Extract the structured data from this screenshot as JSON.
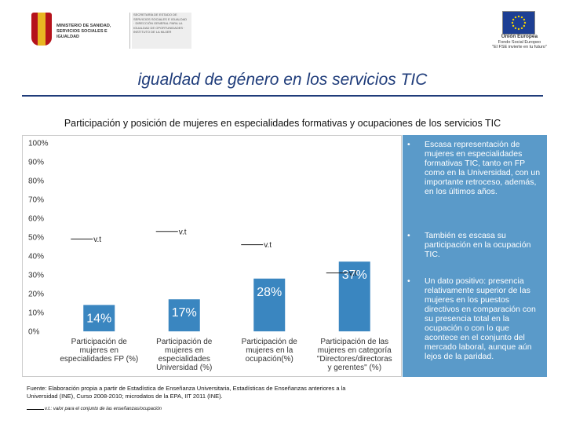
{
  "header": {
    "ministry": "MINISTERIO DE SANIDAD, SERVICIOS SOCIALES E IGUALDAD",
    "sub_org": "SECRETARÍA DE ESTADO DE SERVICIOS SOCIALES E IGUALDAD · DIRECCIÓN GENERAL PARA LA IGUALDAD DE OPORTUNIDADES · INSTITUTO DE LA MUJER",
    "eu_label": "Unión Europea",
    "eu_fund": "Fondo Social Europeo",
    "eu_motto": "\"El FSE invierte en tu futuro\""
  },
  "page_title": "igualdad de género en los servicios TIC",
  "subtitle": "Participación y posición de mujeres en especialidades formativas y ocupaciones de los servicios TIC",
  "chart_data": {
    "type": "bar",
    "title": "Participación y posición de mujeres en especialidades formativas y ocupaciones de los servicios TIC",
    "categories": [
      "Participación de mujeres en especialidades FP (%)",
      "Participación de mujeres en especialidades Universidad (%)",
      "Participación de mujeres en la ocupación(%)",
      "Participación de mujeres en categoría \"Directores/directoras y gerentes\" (%)"
    ],
    "category_lines": [
      [
        "Participación de",
        "mujeres en",
        "especialidades FP (%)"
      ],
      [
        "Participación de",
        "mujeres en",
        "especialidades",
        "Universidad (%)"
      ],
      [
        "Participación de",
        "mujeres en la",
        "ocupación(%)"
      ],
      [
        "Participación de las",
        "mujeres en categoría",
        "\"Directores/directoras",
        "y gerentes\" (%)"
      ]
    ],
    "values": [
      14,
      17,
      28,
      37
    ],
    "value_labels": [
      "14%",
      "17%",
      "28%",
      "37%"
    ],
    "reference_values": [
      49,
      53,
      46,
      31
    ],
    "reference_label": "v.t",
    "ylim": [
      0,
      100
    ],
    "yticks": [
      "0%",
      "10%",
      "20%",
      "30%",
      "40%",
      "50%",
      "60%",
      "70%",
      "80%",
      "90%",
      "100%"
    ],
    "xlabel": "",
    "ylabel": "",
    "bar_color": "#3a86c0",
    "grid": false
  },
  "bullets": [
    {
      "marker": "•",
      "text": "Escasa representación de mujeres en especialidades formativas TIC, tanto en FP como en la Universidad, con un importante retroceso, además, en los últimos años."
    },
    {
      "marker": "•",
      "text": "También es escasa su participación en la ocupación TIC."
    },
    {
      "marker": "•",
      "text": "Un dato positivo: presencia relativamente superior de las mujeres en los puestos directivos en comparación con su presencia total en la ocupación o con lo que acontece en el conjunto del mercado laboral, aunque aún lejos de la paridad."
    }
  ],
  "footer": {
    "source": "Fuente: Elaboración propia a partir de Estadística de Enseñanza Universitaria, Estadísticas de Enseñanzas anteriores a la Universidad (INE), Curso 2008-2010; microdatos de la EPA, IIT 2011 (INE).",
    "vt_note": "v.t.: valor para el conjunto de las enseñanzas/ocupación"
  },
  "colors": {
    "title": "#1f3c7a",
    "panel": "#5a9ac9",
    "bars": "#3a86c0"
  }
}
